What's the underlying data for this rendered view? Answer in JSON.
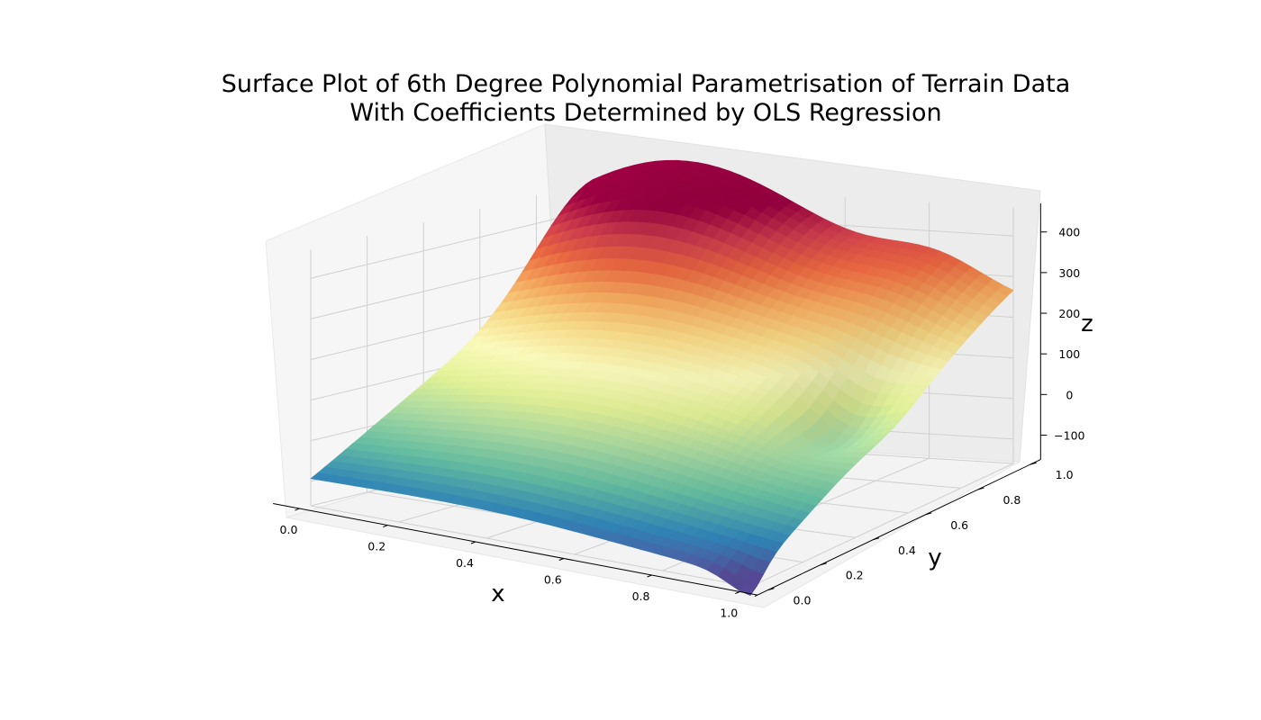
{
  "chart_data": {
    "type": "surface3d",
    "title_lines": [
      "Surface Plot of 6th Degree Polynomial Parametrisation of Terrain Data",
      "With Coefficients Determined by OLS Regression"
    ],
    "xlabel": "x",
    "ylabel": "y",
    "zlabel": "z",
    "xlim": [
      0,
      1
    ],
    "ylim": [
      0,
      1
    ],
    "zlim": [
      -160,
      470
    ],
    "x_ticks": [
      "0.0",
      "0.2",
      "0.4",
      "0.6",
      "0.8",
      "1.0"
    ],
    "y_ticks": [
      "0.0",
      "0.2",
      "0.4",
      "0.6",
      "0.8",
      "1.0"
    ],
    "z_ticks": [
      "−100",
      "0",
      "100",
      "200",
      "300",
      "400"
    ],
    "colormap": "Spectral_r",
    "grid": true,
    "corner_values": {
      "x0_y0": -110,
      "x1_y0": -150,
      "x0_y1": 210,
      "x1_y1": 220
    },
    "max_value": 450
  }
}
